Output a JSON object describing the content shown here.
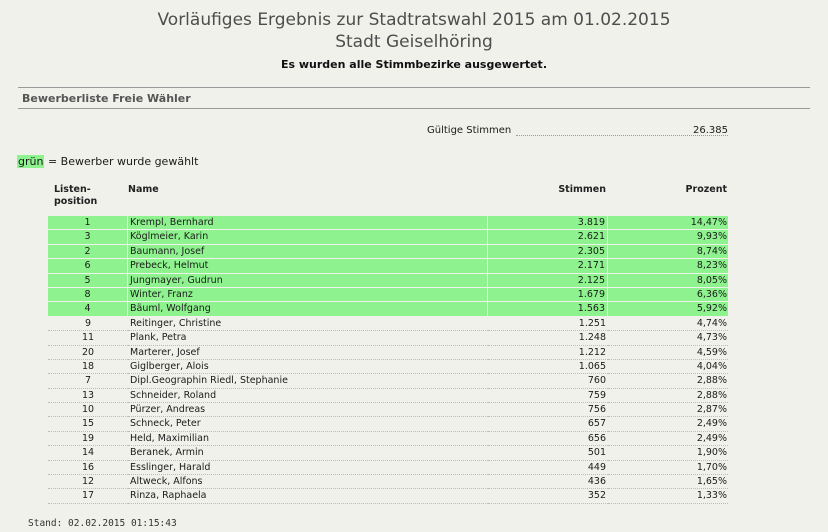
{
  "header": {
    "title_line1": "Vorläufiges Ergebnis zur Stadtratswahl 2015 am 01.02.2015",
    "title_line2": "Stadt Geiselhöring",
    "subtitle": "Es wurden alle Stimmbezirke ausgewertet."
  },
  "section_title": "Bewerberliste Freie Wähler",
  "gueltige": {
    "label": "Gültige Stimmen",
    "value": "26.385"
  },
  "legend": {
    "highlight": "grün",
    "text": " = Bewerber wurde gewählt",
    "color": "#8ef38e"
  },
  "table": {
    "headers": {
      "listenposition": "Listen-\nposition",
      "name": "Name",
      "stimmen": "Stimmen",
      "prozent": "Prozent"
    },
    "rows": [
      {
        "pos": "1",
        "name": "Krempl, Bernhard",
        "stimmen": "3.819",
        "prozent": "14,47%",
        "elected": true
      },
      {
        "pos": "3",
        "name": "Köglmeier, Karin",
        "stimmen": "2.621",
        "prozent": "9,93%",
        "elected": true
      },
      {
        "pos": "2",
        "name": "Baumann, Josef",
        "stimmen": "2.305",
        "prozent": "8,74%",
        "elected": true
      },
      {
        "pos": "6",
        "name": "Prebeck, Helmut",
        "stimmen": "2.171",
        "prozent": "8,23%",
        "elected": true
      },
      {
        "pos": "5",
        "name": "Jungmayer, Gudrun",
        "stimmen": "2.125",
        "prozent": "8,05%",
        "elected": true
      },
      {
        "pos": "8",
        "name": "Winter, Franz",
        "stimmen": "1.679",
        "prozent": "6,36%",
        "elected": true
      },
      {
        "pos": "4",
        "name": "Bäuml, Wolfgang",
        "stimmen": "1.563",
        "prozent": "5,92%",
        "elected": true
      },
      {
        "pos": "9",
        "name": "Reitinger, Christine",
        "stimmen": "1.251",
        "prozent": "4,74%",
        "elected": false
      },
      {
        "pos": "11",
        "name": "Plank, Petra",
        "stimmen": "1.248",
        "prozent": "4,73%",
        "elected": false
      },
      {
        "pos": "20",
        "name": "Marterer, Josef",
        "stimmen": "1.212",
        "prozent": "4,59%",
        "elected": false
      },
      {
        "pos": "18",
        "name": "Giglberger, Alois",
        "stimmen": "1.065",
        "prozent": "4,04%",
        "elected": false
      },
      {
        "pos": "7",
        "name": "Dipl.Geographin Riedl, Stephanie",
        "stimmen": "760",
        "prozent": "2,88%",
        "elected": false
      },
      {
        "pos": "13",
        "name": "Schneider, Roland",
        "stimmen": "759",
        "prozent": "2,88%",
        "elected": false
      },
      {
        "pos": "10",
        "name": "Pürzer, Andreas",
        "stimmen": "756",
        "prozent": "2,87%",
        "elected": false
      },
      {
        "pos": "15",
        "name": "Schneck, Peter",
        "stimmen": "657",
        "prozent": "2,49%",
        "elected": false
      },
      {
        "pos": "19",
        "name": "Held, Maximilian",
        "stimmen": "656",
        "prozent": "2,49%",
        "elected": false
      },
      {
        "pos": "14",
        "name": "Beranek, Armin",
        "stimmen": "501",
        "prozent": "1,90%",
        "elected": false
      },
      {
        "pos": "16",
        "name": "Esslinger, Harald",
        "stimmen": "449",
        "prozent": "1,70%",
        "elected": false
      },
      {
        "pos": "12",
        "name": "Altweck, Alfons",
        "stimmen": "436",
        "prozent": "1,65%",
        "elected": false
      },
      {
        "pos": "17",
        "name": "Rinza, Raphaela",
        "stimmen": "352",
        "prozent": "1,33%",
        "elected": false
      }
    ]
  },
  "footer": {
    "stand": "Stand: 02.02.2015 01:15:43"
  }
}
